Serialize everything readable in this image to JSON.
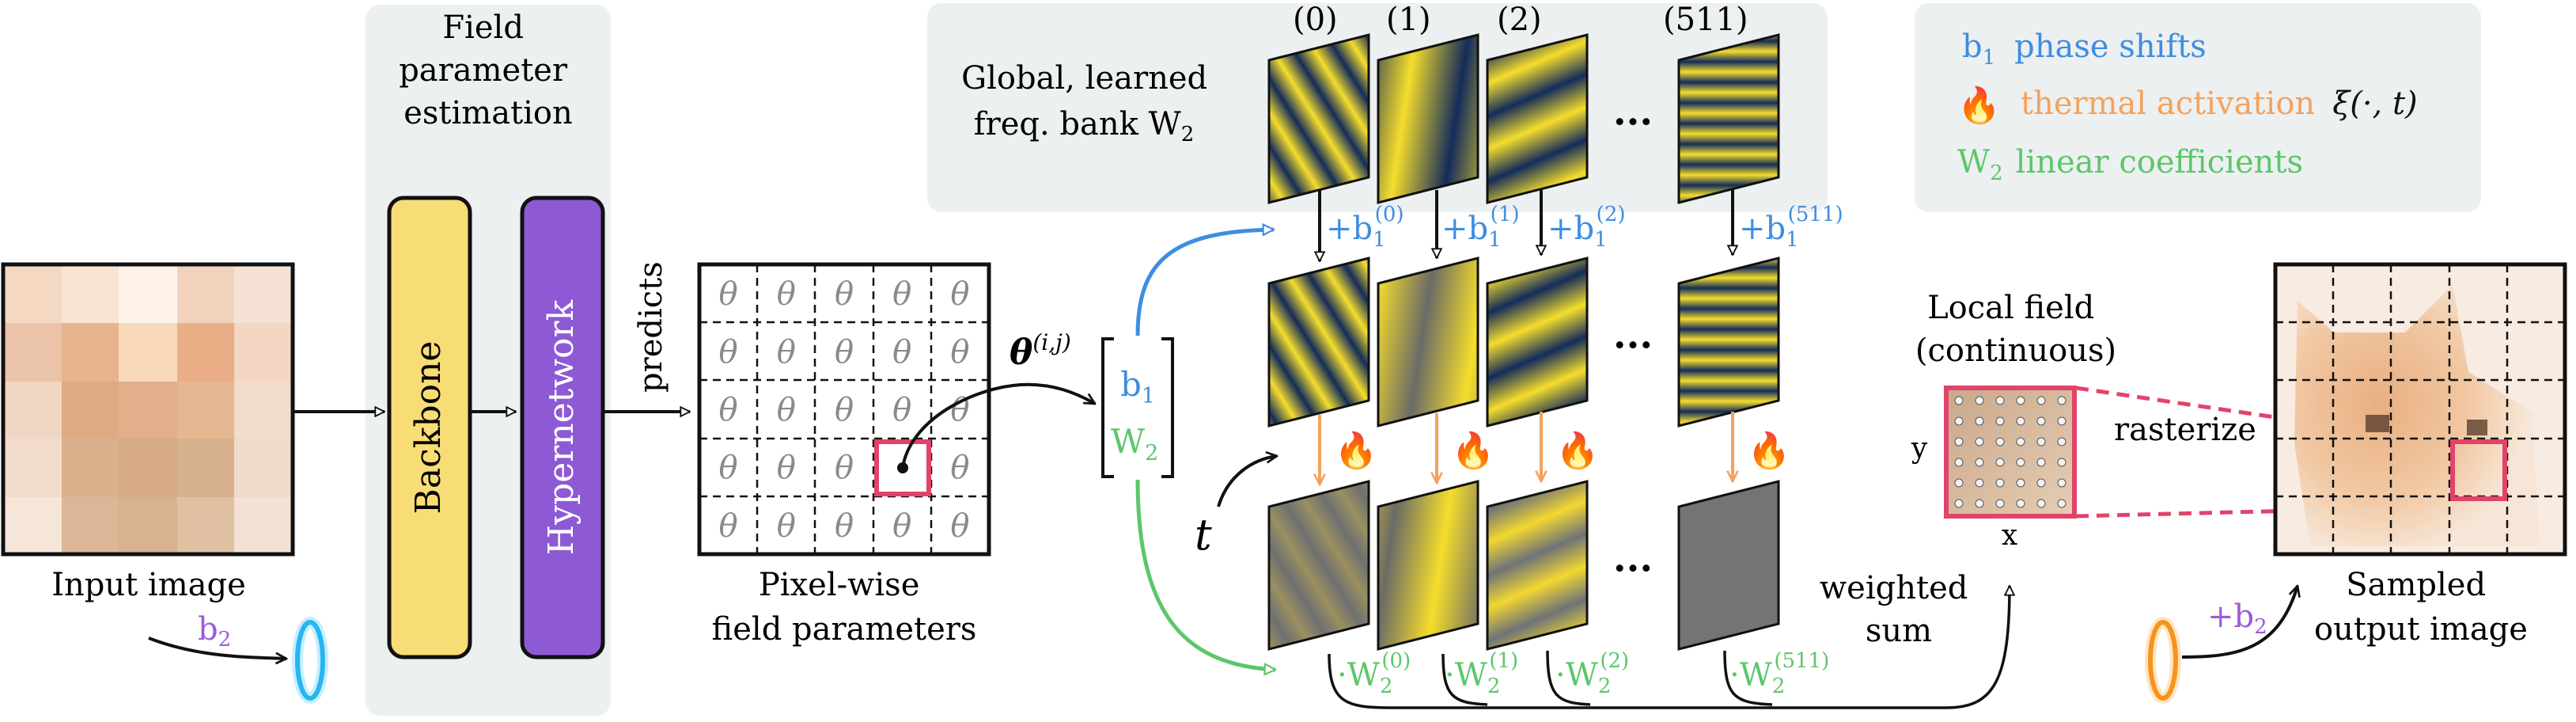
{
  "input": {
    "caption": "Input image",
    "b2_label": "b",
    "b2_sub": "2"
  },
  "field_panel": {
    "title_lines": [
      "Field",
      "parameter",
      "estimation"
    ]
  },
  "backbone": {
    "label": "Backbone"
  },
  "hypernetwork": {
    "label": "Hypernetwork"
  },
  "predicts": "predicts",
  "param_grid": {
    "cell_symbol": "θ",
    "caption_lines": [
      "Pixel-wise",
      "field parameters"
    ]
  },
  "theta_ij": {
    "symbol": "θ",
    "superscript": "(i,j)"
  },
  "vector": {
    "b1": "b",
    "b1_sub": "1",
    "w2": "W",
    "w2_sub": "2"
  },
  "t_label": "t",
  "freq_bank": {
    "title_lines": [
      "Global, learned",
      "freq. bank W"
    ],
    "title_sub": "2"
  },
  "columns": [
    {
      "index": "(0)",
      "b_sup": "(0)",
      "w_sup": "(0)"
    },
    {
      "index": "(1)",
      "b_sup": "(1)",
      "w_sup": "(1)"
    },
    {
      "index": "(2)",
      "b_sup": "(2)",
      "w_sup": "(2)"
    },
    {
      "index": "(511)",
      "b_sup": "(511)",
      "w_sup": "(511)"
    }
  ],
  "plus_b1": {
    "prefix": "+b",
    "sub": "1"
  },
  "dot_w2": {
    "prefix": "·W",
    "sub": "2"
  },
  "ellipsis": "···",
  "fire_icon": "🔥",
  "legend": {
    "b1_symbol": "b",
    "b1_sub": "1",
    "b1_text": "phase shifts",
    "thermal_text": "thermal activation",
    "thermal_math": "ξ(·, t)",
    "w2_symbol": "W",
    "w2_sub": "2",
    "w2_text": "linear coefficients"
  },
  "weighted_sum_lines": [
    "weighted",
    "sum"
  ],
  "local_field": {
    "title_lines": [
      "Local field",
      "(continuous)"
    ],
    "x_label": "x",
    "y_label": "y"
  },
  "rasterize": "rasterize",
  "output": {
    "caption_lines": [
      "Sampled",
      "output image"
    ],
    "plus_b2": "+b",
    "plus_b2_sub": "2"
  },
  "colors": {
    "panel_gray": "#edf0f0",
    "backbone_fill": "#f8dc76",
    "hypernetwork_fill": "#8e59d4",
    "b1_blue": "#3f8de0",
    "thermal_orange": "#f3a25e",
    "w2_green": "#5cc76a",
    "highlight_red": "#e1436a",
    "wave_navy": "#142c5a",
    "wave_yellow": "#f5dd2c",
    "purple_text": "#9c5bd9"
  }
}
